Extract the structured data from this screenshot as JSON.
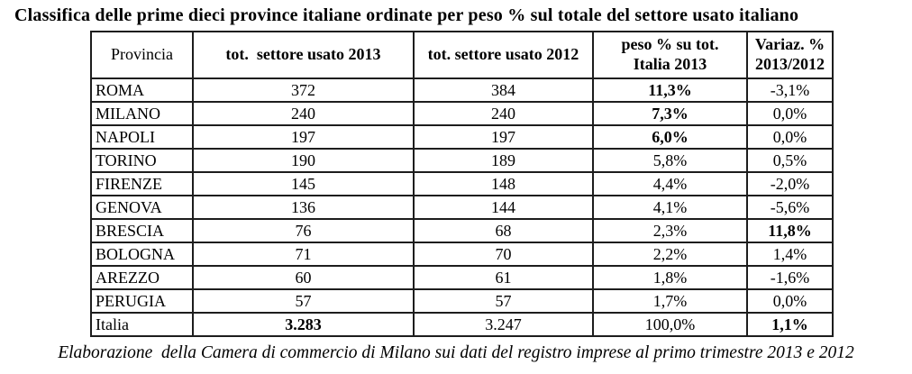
{
  "title": "Classifica delle prime dieci province italiane ordinate per peso % sul totale del settore usato italiano",
  "table": {
    "columns": [
      "provincia",
      "tot2013",
      "tot2012",
      "peso",
      "variaz"
    ],
    "headers": {
      "provincia": "Provincia",
      "tot2013": "tot.  settore usato 2013",
      "tot2012": "tot. settore usato 2012",
      "peso_line1": "peso % su tot.",
      "peso_line2": "Italia 2013",
      "variaz_line1": "Variaz. %",
      "variaz_line2": "2013/2012"
    },
    "rows": [
      {
        "provincia": "ROMA",
        "tot2013": "372",
        "tot2012": "384",
        "peso": "11,3%",
        "variaz": "-3,1%",
        "bold": [
          "peso"
        ]
      },
      {
        "provincia": "MILANO",
        "tot2013": "240",
        "tot2012": "240",
        "peso": "7,3%",
        "variaz": "0,0%",
        "bold": [
          "peso"
        ]
      },
      {
        "provincia": "NAPOLI",
        "tot2013": "197",
        "tot2012": "197",
        "peso": "6,0%",
        "variaz": "0,0%",
        "bold": [
          "peso"
        ]
      },
      {
        "provincia": "TORINO",
        "tot2013": "190",
        "tot2012": "189",
        "peso": "5,8%",
        "variaz": "0,5%",
        "bold": []
      },
      {
        "provincia": "FIRENZE",
        "tot2013": "145",
        "tot2012": "148",
        "peso": "4,4%",
        "variaz": "-2,0%",
        "bold": []
      },
      {
        "provincia": "GENOVA",
        "tot2013": "136",
        "tot2012": "144",
        "peso": "4,1%",
        "variaz": "-5,6%",
        "bold": []
      },
      {
        "provincia": "BRESCIA",
        "tot2013": "76",
        "tot2012": "68",
        "peso": "2,3%",
        "variaz": "11,8%",
        "bold": [
          "variaz"
        ]
      },
      {
        "provincia": "BOLOGNA",
        "tot2013": "71",
        "tot2012": "70",
        "peso": "2,2%",
        "variaz": "1,4%",
        "bold": []
      },
      {
        "provincia": "AREZZO",
        "tot2013": "60",
        "tot2012": "61",
        "peso": "1,8%",
        "variaz": "-1,6%",
        "bold": []
      },
      {
        "provincia": "PERUGIA",
        "tot2013": "57",
        "tot2012": "57",
        "peso": "1,7%",
        "variaz": "0,0%",
        "bold": []
      },
      {
        "provincia": "Italia",
        "tot2013": "3.283",
        "tot2012": "3.247",
        "peso": "100,0%",
        "variaz": "1,1%",
        "bold": [
          "tot2013",
          "variaz"
        ]
      }
    ]
  },
  "footer": "Elaborazione  della Camera di commercio di Milano sui dati del registro imprese al primo trimestre 2013 e 2012"
}
